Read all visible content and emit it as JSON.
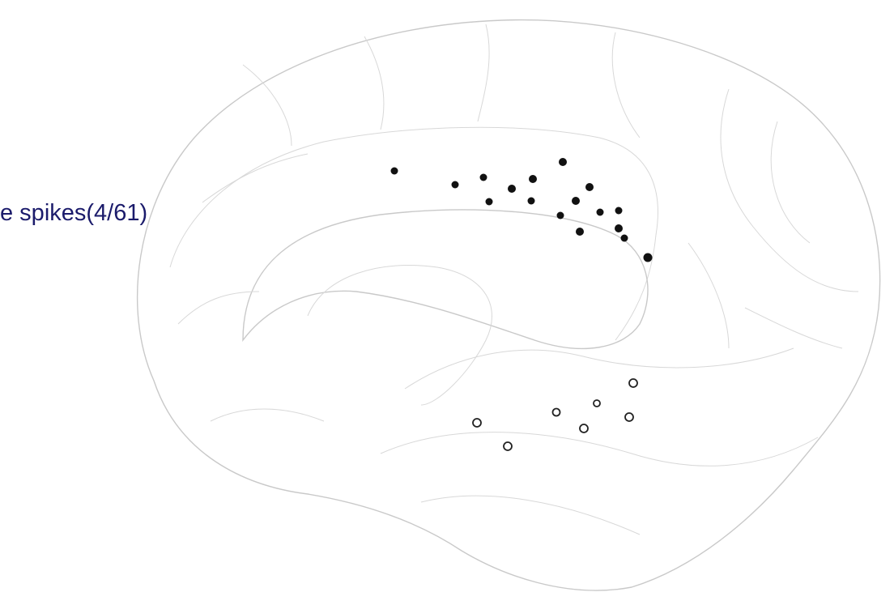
{
  "label": "e spikes(4/61)"
}
